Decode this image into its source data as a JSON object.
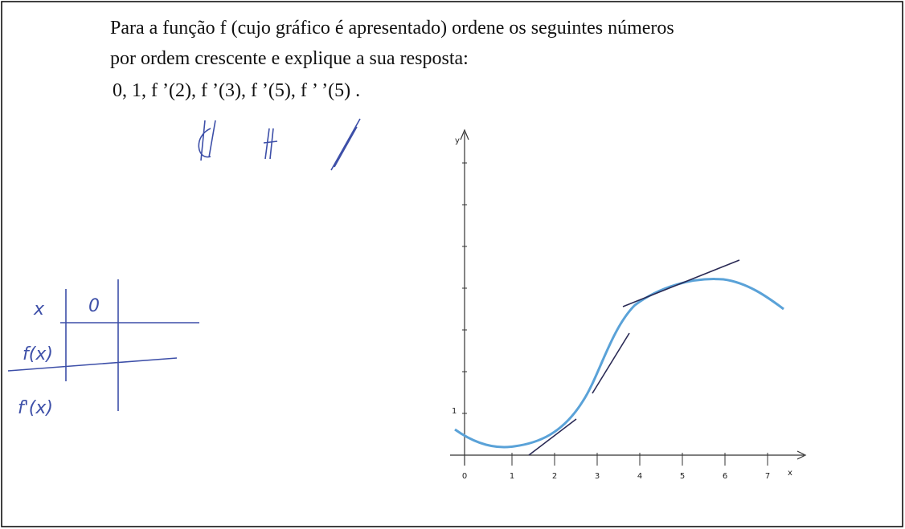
{
  "question": {
    "lines": [
      "Para a função f (cujo gráfico é apresentado) ordene os seguintes números",
      "por ordem crescente e explique a sua resposta:",
      "0,  1,  f ’(2),  f ’(3),  f ’(5),  f ’ ’(5) ."
    ]
  },
  "graph": {
    "y_axis_label": "y",
    "x_axis_label": "x",
    "x_tick_labels": [
      "0",
      "1",
      "2",
      "3",
      "4",
      "5",
      "6",
      "7"
    ],
    "y_tick_labels": [
      "1"
    ]
  },
  "handwriting": {
    "table": [
      "x",
      "0",
      "f(x)",
      "f'(x)"
    ]
  }
}
